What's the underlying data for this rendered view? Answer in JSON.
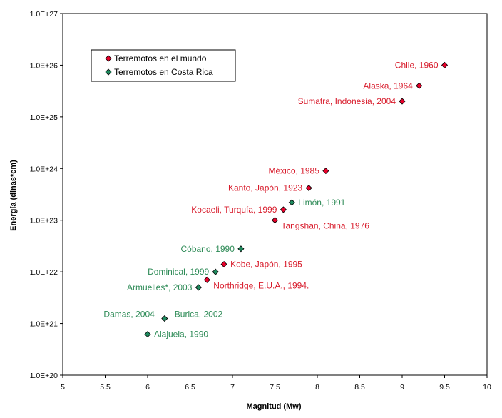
{
  "chart_data": {
    "type": "scatter",
    "title": "",
    "xlabel": "Magnitud (Mw)",
    "ylabel": "Energía (dinas*cm)",
    "xlim": [
      5,
      10
    ],
    "ylim": [
      1e+20,
      1e+27
    ],
    "y_scale": "log",
    "x_ticks": [
      "5",
      "5.5",
      "6",
      "6.5",
      "7",
      "7.5",
      "8",
      "8.5",
      "9",
      "9.5",
      "10"
    ],
    "y_ticks": [
      "1.0E+20",
      "1.0E+21",
      "1.0E+22",
      "1.0E+23",
      "1.0E+24",
      "1.0E+25",
      "1.0E+26",
      "1.0E+27"
    ],
    "grid": false,
    "legend_position": "top-left",
    "series": [
      {
        "name": "Terremotos en el mundo",
        "color": "#e8002a",
        "label_color": "#d81b2b",
        "points": [
          {
            "x": 9.5,
            "y": 1e+26,
            "label": "Chile, 1960",
            "side": "left"
          },
          {
            "x": 9.2,
            "y": 4e+25,
            "label": "Alaska, 1964",
            "side": "left"
          },
          {
            "x": 9.0,
            "y": 2e+25,
            "label": "Sumatra, Indonesia, 2004",
            "side": "left"
          },
          {
            "x": 8.1,
            "y": 9e+23,
            "label": "México, 1985",
            "side": "left"
          },
          {
            "x": 7.9,
            "y": 4.2e+23,
            "label": "Kanto, Japón, 1923",
            "side": "left"
          },
          {
            "x": 7.6,
            "y": 1.6e+23,
            "label": "Kocaeli, Turquía, 1999",
            "side": "left"
          },
          {
            "x": 7.5,
            "y": 1e+23,
            "label": "Tangshan, China, 1976",
            "side": "right-below"
          },
          {
            "x": 6.9,
            "y": 1.4e+22,
            "label": "Kobe, Japón, 1995",
            "side": "right"
          },
          {
            "x": 6.7,
            "y": 7e+21,
            "label": "Northridge, E.U.A., 1994.",
            "side": "right-below"
          }
        ]
      },
      {
        "name": "Terremotos en Costa Rica",
        "color": "#1e8a5e",
        "label_color": "#2e8b57",
        "points": [
          {
            "x": 7.7,
            "y": 2.2e+23,
            "label": "Limón, 1991",
            "side": "right"
          },
          {
            "x": 7.1,
            "y": 2.8e+22,
            "label": "Cóbano, 1990",
            "side": "left"
          },
          {
            "x": 6.8,
            "y": 1e+22,
            "label": "Dominical, 1999",
            "side": "left"
          },
          {
            "x": 6.6,
            "y": 5e+21,
            "label": "Armuelles*, 2003",
            "side": "left"
          },
          {
            "x": 6.2,
            "y": 1.25e+21,
            "label": "Burica, 2002",
            "side": "right-above"
          },
          {
            "x": 6.2,
            "y": 1.25e+21,
            "label": "Damas, 2004",
            "side": "left-above"
          },
          {
            "x": 6.0,
            "y": 6.2e+20,
            "label": "Alajuela, 1990",
            "side": "right"
          }
        ]
      }
    ]
  }
}
